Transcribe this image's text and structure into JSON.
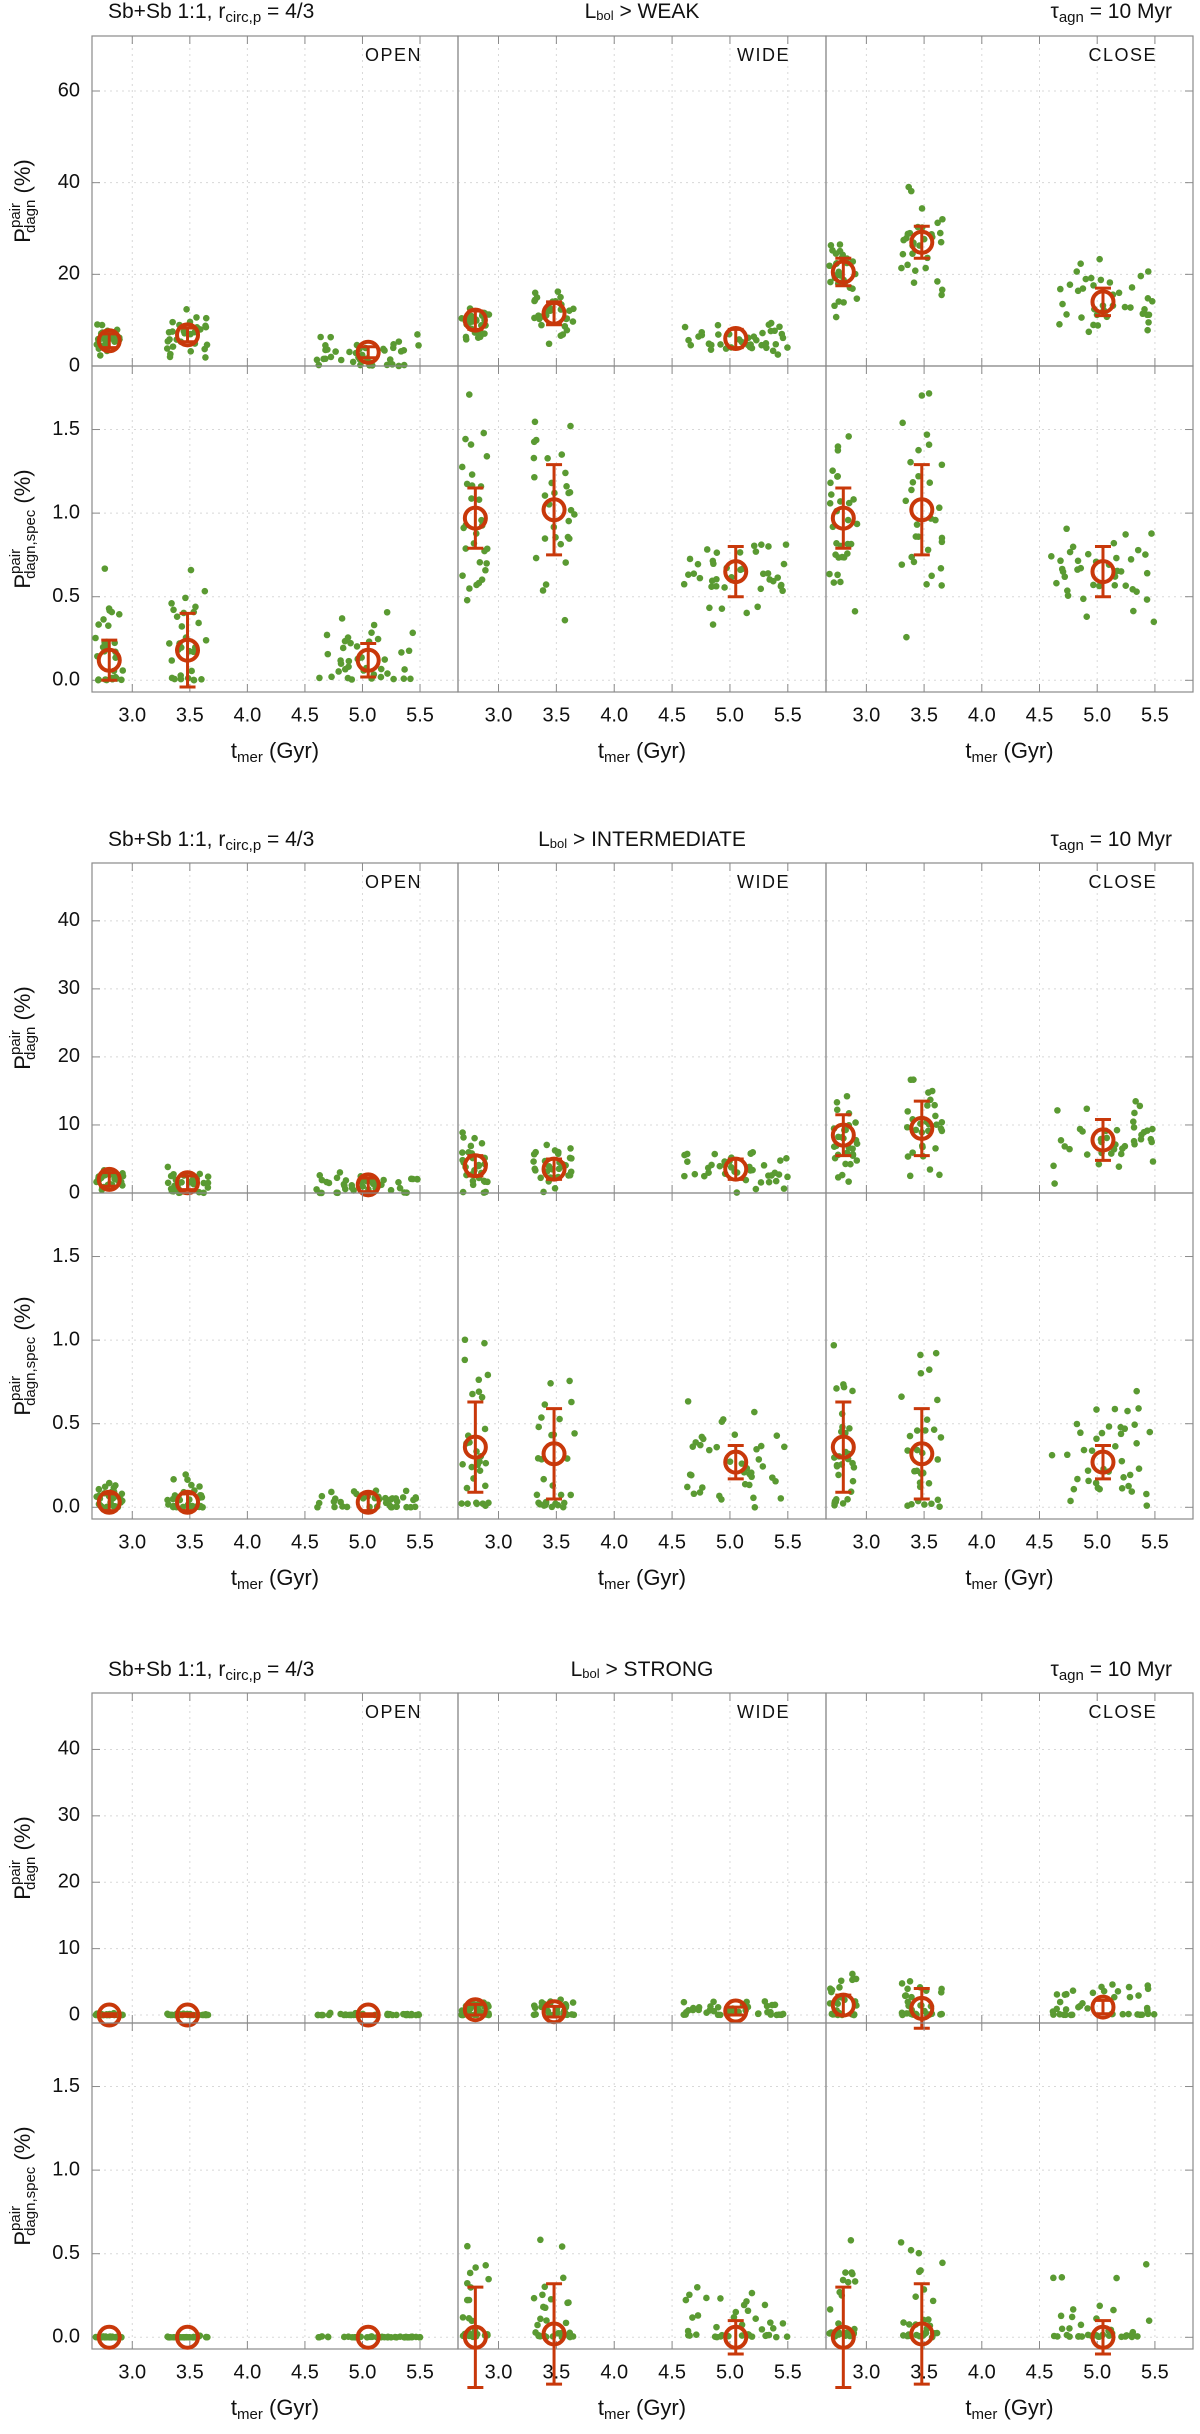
{
  "figure": {
    "x_tick_labels": [
      "3.0",
      "3.5",
      "4.0",
      "4.5",
      "5.0",
      "5.5"
    ],
    "x_ticks": [
      3.0,
      3.5,
      4.0,
      4.5,
      5.0,
      5.5
    ],
    "xlim": [
      2.65,
      5.83
    ],
    "xlabel_main": "t",
    "xlabel_sub": "mer",
    "xlabel_unit": " (Gyr)",
    "ylabel_top": {
      "main": "P",
      "sup": "pair",
      "sub": "dagn",
      "unit": "(%)"
    },
    "ylabel_bottom": {
      "main": "P",
      "sup": "pair",
      "sub": "dagn,spec",
      "unit": "(%)"
    },
    "colors": {
      "points": "#5a9a32",
      "marker": "#c8380a",
      "frame": "#8a8a8a",
      "grid": "#d8d8d8"
    }
  },
  "chart_data": [
    {
      "type": "scatter",
      "header_left": {
        "text": "Sb+Sb 1:1, r",
        "sub": "circ,p",
        "rest": " = 4/3"
      },
      "header_center": {
        "pre": "L",
        "sub": "bol",
        "post": " > WEAK"
      },
      "header_right": {
        "pre": "τ",
        "sub": "agn",
        "post": " = 10 Myr"
      },
      "columns": [
        "OPEN",
        "WIDE",
        "CLOSE"
      ],
      "rows": [
        {
          "ylim": [
            0,
            72
          ],
          "yticks": [
            0,
            20,
            40,
            60
          ],
          "tick_labels": [
            "0",
            "20",
            "40",
            "60"
          ],
          "panels": [
            {
              "name": "OPEN",
              "groups": [
                {
                  "x": 2.8,
                  "y": 5.5,
                  "err": 1.5,
                  "xspread": 0.12,
                  "yspread": 1.8,
                  "npts": 30
                },
                {
                  "x": 3.48,
                  "y": 6.8,
                  "err": 1.5,
                  "xspread": 0.18,
                  "yspread": 2.2,
                  "npts": 30
                },
                {
                  "x": 5.05,
                  "y": 3.0,
                  "err": 1.2,
                  "xspread": 0.45,
                  "yspread": 2.0,
                  "npts": 40
                }
              ]
            },
            {
              "name": "WIDE",
              "groups": [
                {
                  "x": 2.8,
                  "y": 10.0,
                  "err": 2.0,
                  "xspread": 0.12,
                  "yspread": 2.0,
                  "npts": 30
                },
                {
                  "x": 3.48,
                  "y": 11.5,
                  "err": 2.5,
                  "xspread": 0.18,
                  "yspread": 2.8,
                  "npts": 30
                },
                {
                  "x": 5.05,
                  "y": 6.0,
                  "err": 2.0,
                  "xspread": 0.45,
                  "yspread": 2.0,
                  "npts": 40
                }
              ]
            },
            {
              "name": "CLOSE",
              "groups": [
                {
                  "x": 2.8,
                  "y": 20.5,
                  "err": 3.0,
                  "xspread": 0.12,
                  "yspread": 4.5,
                  "npts": 30
                },
                {
                  "x": 3.48,
                  "y": 27.0,
                  "err": 3.5,
                  "xspread": 0.18,
                  "yspread": 5.5,
                  "npts": 30
                },
                {
                  "x": 5.05,
                  "y": 14.0,
                  "err": 3.0,
                  "xspread": 0.45,
                  "yspread": 4.0,
                  "npts": 40
                }
              ]
            }
          ]
        },
        {
          "ylim": [
            -0.07,
            1.88
          ],
          "yticks": [
            0.0,
            0.5,
            1.0,
            1.5
          ],
          "tick_labels": [
            "0.0",
            "0.5",
            "1.0",
            "1.5"
          ],
          "panels": [
            {
              "name": "OPEN",
              "groups": [
                {
                  "x": 2.8,
                  "y": 0.12,
                  "err": 0.12,
                  "xspread": 0.12,
                  "yspread": 0.2,
                  "npts": 30
                },
                {
                  "x": 3.48,
                  "y": 0.18,
                  "err": 0.22,
                  "xspread": 0.18,
                  "yspread": 0.2,
                  "npts": 30
                },
                {
                  "x": 5.05,
                  "y": 0.12,
                  "err": 0.1,
                  "xspread": 0.45,
                  "yspread": 0.15,
                  "npts": 40
                }
              ]
            },
            {
              "name": "WIDE",
              "groups": [
                {
                  "x": 2.8,
                  "y": 0.97,
                  "err": 0.18,
                  "xspread": 0.12,
                  "yspread": 0.28,
                  "npts": 30
                },
                {
                  "x": 3.48,
                  "y": 1.02,
                  "err": 0.27,
                  "xspread": 0.18,
                  "yspread": 0.32,
                  "npts": 30
                },
                {
                  "x": 5.05,
                  "y": 0.65,
                  "err": 0.15,
                  "xspread": 0.45,
                  "yspread": 0.15,
                  "npts": 40
                }
              ]
            },
            {
              "name": "CLOSE",
              "groups": [
                {
                  "x": 2.8,
                  "y": 0.97,
                  "err": 0.18,
                  "xspread": 0.12,
                  "yspread": 0.28,
                  "npts": 30
                },
                {
                  "x": 3.48,
                  "y": 1.02,
                  "err": 0.27,
                  "xspread": 0.18,
                  "yspread": 0.32,
                  "npts": 30
                },
                {
                  "x": 5.05,
                  "y": 0.65,
                  "err": 0.15,
                  "xspread": 0.45,
                  "yspread": 0.15,
                  "npts": 40
                }
              ]
            }
          ]
        }
      ]
    },
    {
      "type": "scatter",
      "header_left": {
        "text": "Sb+Sb 1:1, r",
        "sub": "circ,p",
        "rest": " = 4/3"
      },
      "header_center": {
        "pre": "L",
        "sub": "bol",
        "post": " > INTERMEDIATE"
      },
      "header_right": {
        "pre": "τ",
        "sub": "agn",
        "post": " = 10 Myr"
      },
      "columns": [
        "OPEN",
        "WIDE",
        "CLOSE"
      ],
      "rows": [
        {
          "ylim": [
            0,
            48.5
          ],
          "yticks": [
            0,
            10,
            20,
            30,
            40
          ],
          "tick_labels": [
            "0",
            "10",
            "20",
            "30",
            "40"
          ],
          "panels": [
            {
              "name": "OPEN",
              "groups": [
                {
                  "x": 2.8,
                  "y": 2.0,
                  "err": 1.0,
                  "xspread": 0.12,
                  "yspread": 1.0,
                  "npts": 30
                },
                {
                  "x": 3.48,
                  "y": 1.5,
                  "err": 1.0,
                  "xspread": 0.18,
                  "yspread": 1.0,
                  "npts": 30
                },
                {
                  "x": 5.05,
                  "y": 1.2,
                  "err": 1.0,
                  "xspread": 0.45,
                  "yspread": 0.9,
                  "npts": 40
                }
              ]
            },
            {
              "name": "WIDE",
              "groups": [
                {
                  "x": 2.8,
                  "y": 4.0,
                  "err": 1.5,
                  "xspread": 0.12,
                  "yspread": 1.8,
                  "npts": 30
                },
                {
                  "x": 3.48,
                  "y": 3.5,
                  "err": 1.5,
                  "xspread": 0.18,
                  "yspread": 1.6,
                  "npts": 30
                },
                {
                  "x": 5.05,
                  "y": 3.5,
                  "err": 1.5,
                  "xspread": 0.45,
                  "yspread": 1.3,
                  "npts": 40
                }
              ]
            },
            {
              "name": "CLOSE",
              "groups": [
                {
                  "x": 2.8,
                  "y": 8.5,
                  "err": 3.0,
                  "xspread": 0.12,
                  "yspread": 3.5,
                  "npts": 30
                },
                {
                  "x": 3.48,
                  "y": 9.5,
                  "err": 4.0,
                  "xspread": 0.18,
                  "yspread": 3.8,
                  "npts": 30
                },
                {
                  "x": 5.05,
                  "y": 7.8,
                  "err": 3.0,
                  "xspread": 0.45,
                  "yspread": 2.8,
                  "npts": 40
                }
              ]
            }
          ]
        },
        {
          "ylim": [
            -0.07,
            1.88
          ],
          "yticks": [
            0.0,
            0.5,
            1.0,
            1.5
          ],
          "tick_labels": [
            "0.0",
            "0.5",
            "1.0",
            "1.5"
          ],
          "panels": [
            {
              "name": "OPEN",
              "groups": [
                {
                  "x": 2.8,
                  "y": 0.03,
                  "err": 0.05,
                  "xspread": 0.12,
                  "yspread": 0.07,
                  "npts": 30
                },
                {
                  "x": 3.48,
                  "y": 0.03,
                  "err": 0.05,
                  "xspread": 0.18,
                  "yspread": 0.08,
                  "npts": 30
                },
                {
                  "x": 5.05,
                  "y": 0.03,
                  "err": 0.05,
                  "xspread": 0.45,
                  "yspread": 0.05,
                  "npts": 40
                }
              ]
            },
            {
              "name": "WIDE",
              "groups": [
                {
                  "x": 2.8,
                  "y": 0.36,
                  "err": 0.27,
                  "xspread": 0.12,
                  "yspread": 0.28,
                  "npts": 30
                },
                {
                  "x": 3.48,
                  "y": 0.32,
                  "err": 0.27,
                  "xspread": 0.18,
                  "yspread": 0.28,
                  "npts": 30
                },
                {
                  "x": 5.05,
                  "y": 0.27,
                  "err": 0.1,
                  "xspread": 0.45,
                  "yspread": 0.17,
                  "npts": 40
                }
              ]
            },
            {
              "name": "CLOSE",
              "groups": [
                {
                  "x": 2.8,
                  "y": 0.36,
                  "err": 0.27,
                  "xspread": 0.12,
                  "yspread": 0.28,
                  "npts": 30
                },
                {
                  "x": 3.48,
                  "y": 0.32,
                  "err": 0.27,
                  "xspread": 0.18,
                  "yspread": 0.28,
                  "npts": 30
                },
                {
                  "x": 5.05,
                  "y": 0.27,
                  "err": 0.1,
                  "xspread": 0.45,
                  "yspread": 0.17,
                  "npts": 40
                }
              ]
            }
          ]
        }
      ]
    },
    {
      "type": "scatter",
      "header_left": {
        "text": "Sb+Sb 1:1, r",
        "sub": "circ,p",
        "rest": " = 4/3"
      },
      "header_center": {
        "pre": "L",
        "sub": "bol",
        "post": " > STRONG"
      },
      "header_right": {
        "pre": "τ",
        "sub": "agn",
        "post": " = 10 Myr"
      },
      "columns": [
        "OPEN",
        "WIDE",
        "CLOSE"
      ],
      "rows": [
        {
          "ylim": [
            -1.2,
            48.5
          ],
          "yticks": [
            0,
            10,
            20,
            30,
            40
          ],
          "tick_labels": [
            "0",
            "10",
            "20",
            "30",
            "40"
          ],
          "panels": [
            {
              "name": "OPEN",
              "groups": [
                {
                  "x": 2.8,
                  "y": 0.0,
                  "err": 0.2,
                  "xspread": 0.12,
                  "yspread": 0.15,
                  "npts": 30
                },
                {
                  "x": 3.48,
                  "y": 0.0,
                  "err": 0.2,
                  "xspread": 0.18,
                  "yspread": 0.15,
                  "npts": 30
                },
                {
                  "x": 5.05,
                  "y": 0.0,
                  "err": 0.2,
                  "xspread": 0.45,
                  "yspread": 0.15,
                  "npts": 40
                }
              ]
            },
            {
              "name": "WIDE",
              "groups": [
                {
                  "x": 2.8,
                  "y": 0.8,
                  "err": 0.8,
                  "xspread": 0.12,
                  "yspread": 1.0,
                  "npts": 30
                },
                {
                  "x": 3.48,
                  "y": 0.5,
                  "err": 0.8,
                  "xspread": 0.18,
                  "yspread": 1.0,
                  "npts": 30
                },
                {
                  "x": 5.05,
                  "y": 0.6,
                  "err": 0.6,
                  "xspread": 0.45,
                  "yspread": 0.7,
                  "npts": 40
                }
              ]
            },
            {
              "name": "CLOSE",
              "groups": [
                {
                  "x": 2.8,
                  "y": 1.5,
                  "err": 1.5,
                  "xspread": 0.12,
                  "yspread": 2.2,
                  "npts": 30
                },
                {
                  "x": 3.48,
                  "y": 1.0,
                  "err": 3.0,
                  "xspread": 0.18,
                  "yspread": 2.6,
                  "npts": 30
                },
                {
                  "x": 5.05,
                  "y": 1.2,
                  "err": 1.0,
                  "xspread": 0.45,
                  "yspread": 1.8,
                  "npts": 40
                }
              ]
            }
          ]
        },
        {
          "ylim": [
            -0.07,
            1.88
          ],
          "yticks": [
            0.0,
            0.5,
            1.0,
            1.5
          ],
          "tick_labels": [
            "0.0",
            "0.5",
            "1.0",
            "1.5"
          ],
          "panels": [
            {
              "name": "OPEN",
              "groups": [
                {
                  "x": 2.8,
                  "y": 0.0,
                  "err": 0.0,
                  "xspread": 0.12,
                  "yspread": 0.004,
                  "npts": 30
                },
                {
                  "x": 3.48,
                  "y": 0.0,
                  "err": 0.0,
                  "xspread": 0.18,
                  "yspread": 0.004,
                  "npts": 30
                },
                {
                  "x": 5.05,
                  "y": 0.0,
                  "err": 0.0,
                  "xspread": 0.45,
                  "yspread": 0.004,
                  "npts": 40
                }
              ]
            },
            {
              "name": "WIDE",
              "groups": [
                {
                  "x": 2.8,
                  "y": 0.0,
                  "err": 0.3,
                  "xspread": 0.12,
                  "yspread": 0.3,
                  "npts": 30
                },
                {
                  "x": 3.48,
                  "y": 0.02,
                  "err": 0.3,
                  "xspread": 0.18,
                  "yspread": 0.3,
                  "npts": 30
                },
                {
                  "x": 5.05,
                  "y": 0.0,
                  "err": 0.1,
                  "xspread": 0.45,
                  "yspread": 0.17,
                  "npts": 40
                }
              ]
            },
            {
              "name": "CLOSE",
              "groups": [
                {
                  "x": 2.8,
                  "y": 0.0,
                  "err": 0.3,
                  "xspread": 0.12,
                  "yspread": 0.3,
                  "npts": 30
                },
                {
                  "x": 3.48,
                  "y": 0.02,
                  "err": 0.3,
                  "xspread": 0.18,
                  "yspread": 0.3,
                  "npts": 30
                },
                {
                  "x": 5.05,
                  "y": 0.0,
                  "err": 0.1,
                  "xspread": 0.45,
                  "yspread": 0.17,
                  "npts": 40
                }
              ]
            }
          ]
        }
      ]
    }
  ]
}
